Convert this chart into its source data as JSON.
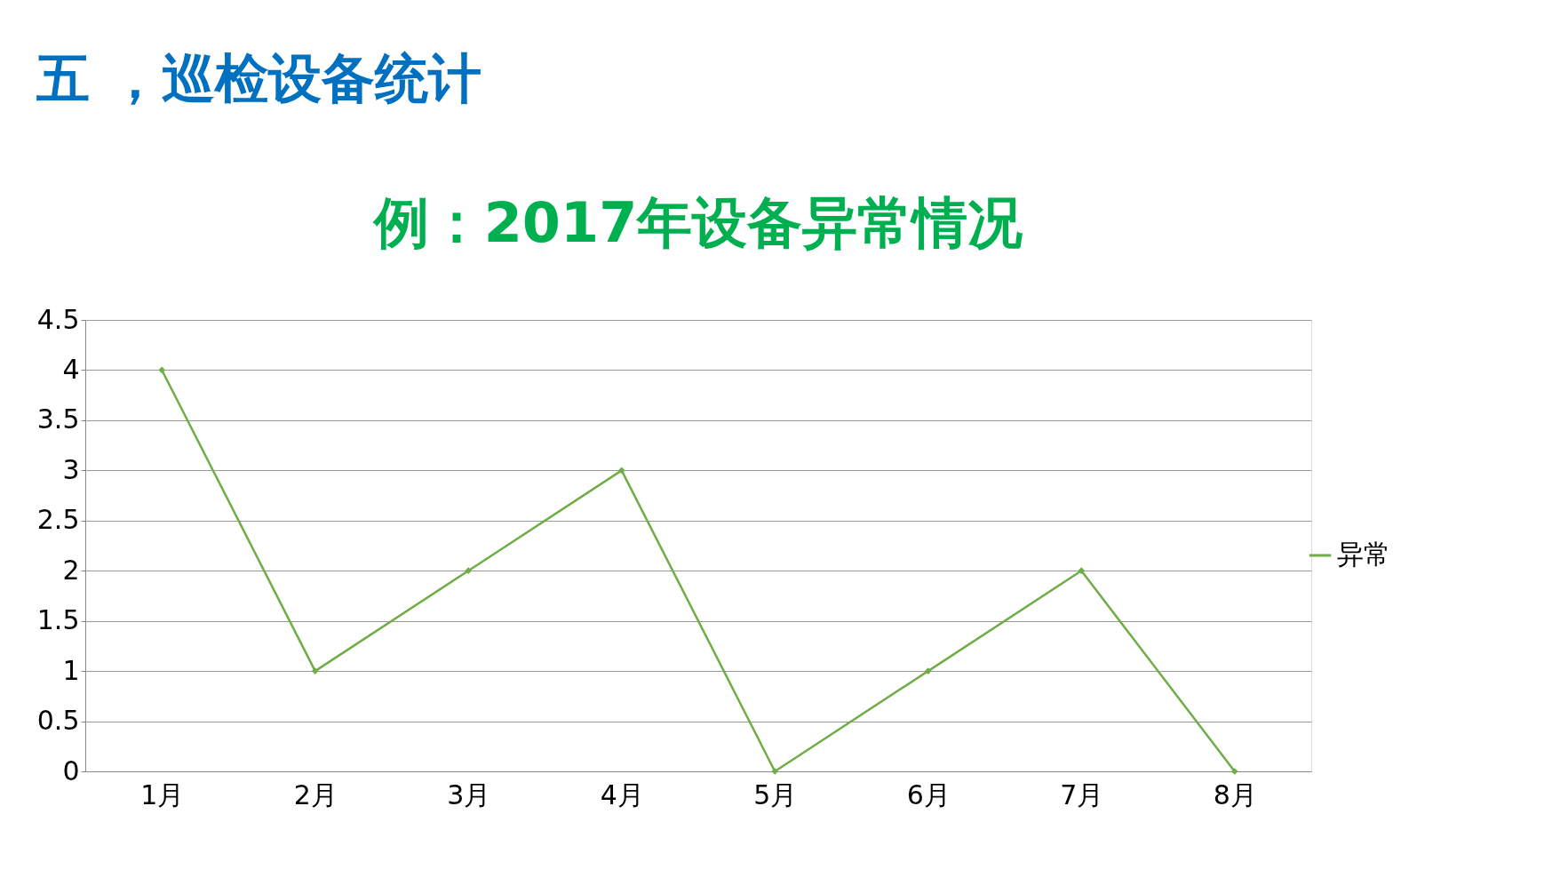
{
  "chart_data": {
    "type": "line",
    "title": "五 ，巡检设备统计",
    "subtitle": "例：2017年设备异常情况",
    "categories": [
      "1月",
      "2月",
      "3月",
      "4月",
      "5月",
      "6月",
      "7月",
      "8月"
    ],
    "series": [
      {
        "name": "异常",
        "color": "#70ad47",
        "values": [
          4,
          1,
          2,
          3,
          0,
          1,
          2,
          0
        ]
      }
    ],
    "ylim": [
      0,
      4.5
    ],
    "yticks": [
      0,
      0.5,
      1,
      1.5,
      2,
      2.5,
      3,
      3.5,
      4,
      4.5
    ],
    "grid": "y",
    "legend": "right",
    "marker": "diamond",
    "line_style": "solid"
  }
}
